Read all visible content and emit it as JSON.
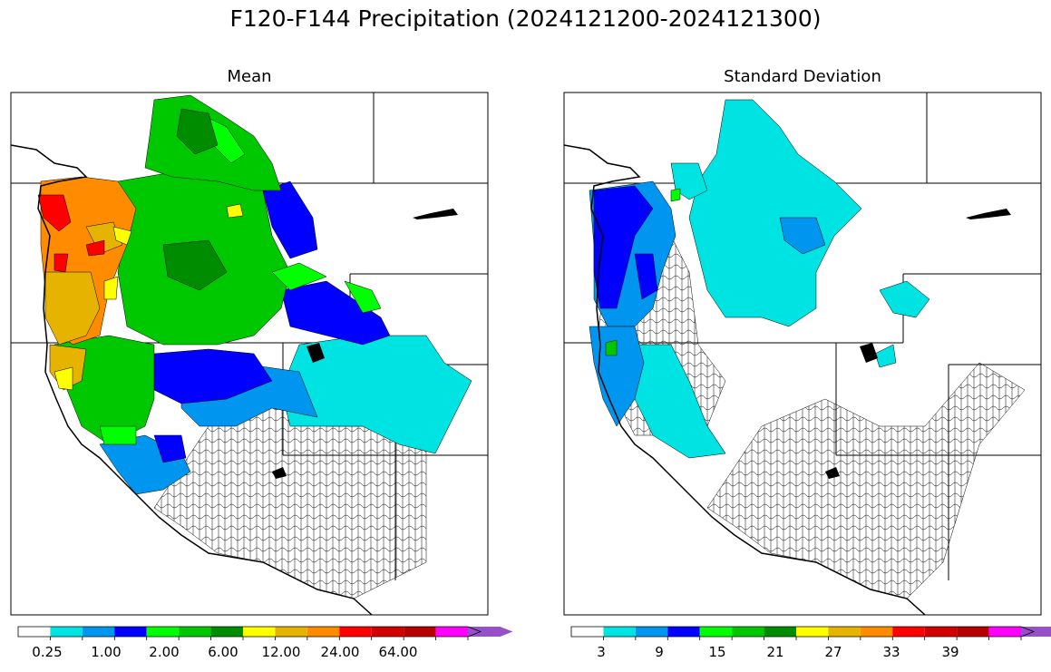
{
  "title": "F120-F144 Precipitation (2024121200-2024121300)",
  "panels": [
    {
      "title": "Mean",
      "colorbar": {
        "colors": [
          "#ffffff",
          "#00e3e3",
          "#0096f0",
          "#0000ff",
          "#00ff00",
          "#00c800",
          "#008c00",
          "#ffff00",
          "#e6b400",
          "#ff8c00",
          "#ff0000",
          "#d20000",
          "#b40000",
          "#ff00ff",
          "#9650c8"
        ],
        "tick_labels": [
          "0.25",
          "1.00",
          "2.00",
          "6.00",
          "12.00",
          "24.00",
          "64.00"
        ]
      }
    },
    {
      "title": "Standard Deviation",
      "colorbar": {
        "colors": [
          "#ffffff",
          "#00e3e3",
          "#0096f0",
          "#0000ff",
          "#00ff00",
          "#00c800",
          "#008c00",
          "#ffff00",
          "#e6b400",
          "#ff8c00",
          "#ff0000",
          "#d20000",
          "#b40000",
          "#ff00ff",
          "#9650c8"
        ],
        "tick_labels": [
          "3",
          "9",
          "15",
          "21",
          "27",
          "33",
          "39"
        ]
      }
    }
  ]
}
